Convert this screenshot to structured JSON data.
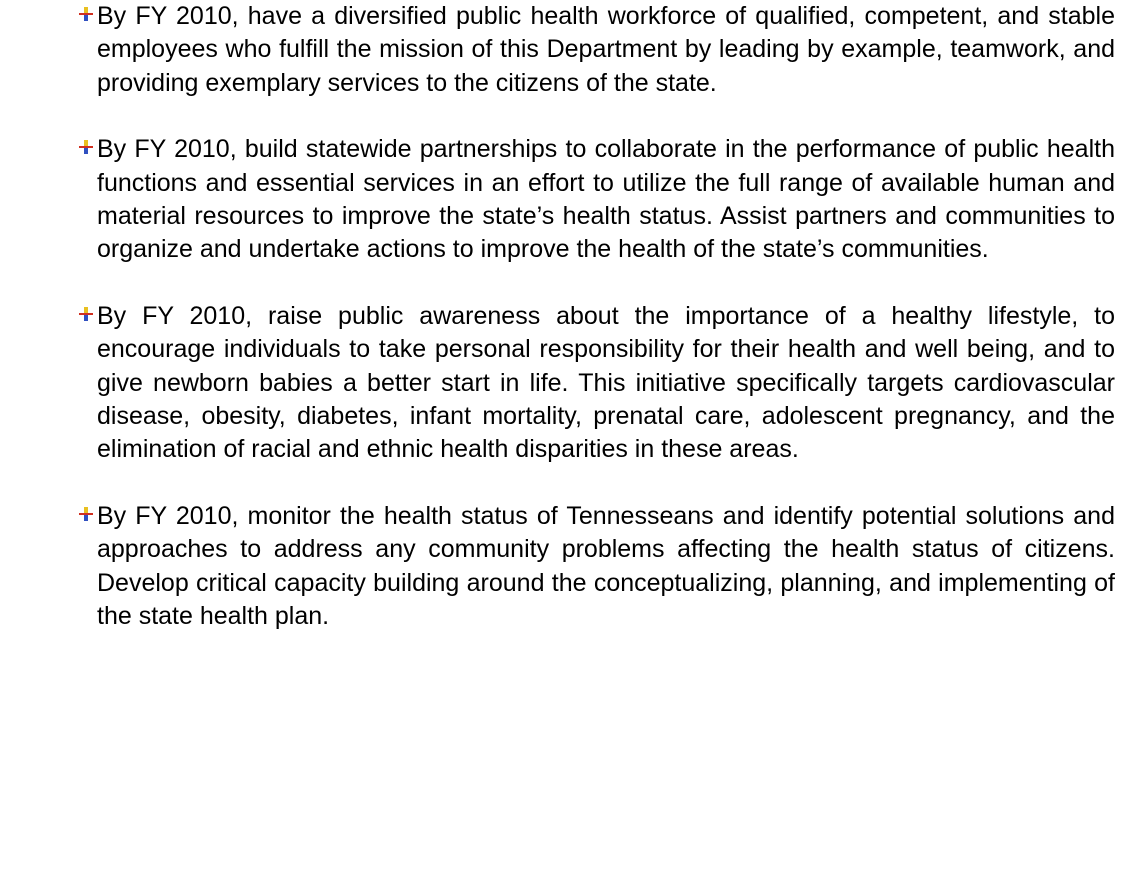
{
  "items": [
    {
      "text": "By FY 2010, have a diversified public health workforce of qualified, competent, and stable employees who fulfill the mission of this Department by leading by example, teamwork, and providing exemplary services to the citizens of the state."
    },
    {
      "text": "By FY 2010, build statewide partnerships to collaborate in the performance of public health functions and essential services in an effort to utilize the full range of available human and material resources to improve the state’s health status. Assist partners and communities to organize and undertake actions to improve the health of the state’s communities."
    },
    {
      "text": "By FY 2010, raise public awareness about the importance of a healthy lifestyle, to encourage individuals to take personal responsibility for their health and well being, and to give newborn babies a better start in life. This initiative specifically targets cardiovascular disease, obesity, diabetes, infant mortality, prenatal care, adolescent pregnancy, and the elimination of racial and ethnic health disparities in these areas."
    },
    {
      "text": "By FY 2010, monitor the health status of Tennesseans and identify potential solutions and approaches to address any community problems affecting the health status of citizens. Develop critical capacity building around the conceptualizing, planning, and implementing of the state health plan."
    }
  ]
}
